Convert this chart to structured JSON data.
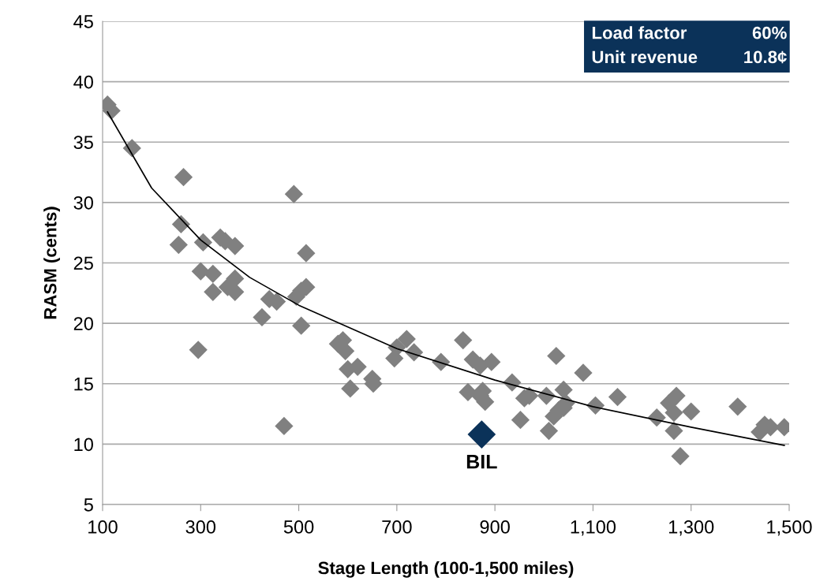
{
  "chart_data": {
    "type": "scatter",
    "xlabel": "Stage Length (100-1,500 miles)",
    "ylabel": "RASM (cents)",
    "xlim": [
      100,
      1500
    ],
    "xticks": [
      {
        "value": 100,
        "label": "100"
      },
      {
        "value": 300,
        "label": "300"
      },
      {
        "value": 500,
        "label": "500"
      },
      {
        "value": 700,
        "label": "700"
      },
      {
        "value": 900,
        "label": "900"
      },
      {
        "value": 1100,
        "label": "1,100"
      },
      {
        "value": 1300,
        "label": "1,300"
      },
      {
        "value": 1500,
        "label": "1,500"
      }
    ],
    "ylim": [
      5,
      45
    ],
    "yticks": [
      5,
      10,
      15,
      20,
      25,
      30,
      35,
      40,
      45
    ],
    "grid": "y",
    "marker": "diamond",
    "series": [
      {
        "color": "#808080",
        "x": [
          110,
          118,
          160,
          265,
          260,
          255,
          305,
          300,
          295,
          325,
          325,
          340,
          350,
          355,
          370,
          370,
          370,
          425,
          440,
          455,
          470,
          490,
          495,
          505,
          515,
          515,
          505,
          580,
          590,
          595,
          600,
          605,
          620,
          650,
          652,
          695,
          700,
          720,
          735,
          790,
          835,
          845,
          855,
          870,
          870,
          875,
          880,
          893,
          935,
          952,
          960,
          970,
          1005,
          1010,
          1020,
          1025,
          1030,
          1040,
          1040,
          1045,
          1080,
          1105,
          1150,
          1230,
          1255,
          1265,
          1265,
          1270,
          1278,
          1300,
          1395,
          1440,
          1450,
          1462,
          1490
        ],
        "values": [
          38.1,
          37.6,
          34.5,
          32.1,
          28.2,
          26.5,
          26.7,
          24.3,
          17.8,
          24.1,
          22.6,
          27.1,
          26.8,
          23.0,
          26.4,
          23.7,
          22.6,
          20.5,
          22.0,
          21.8,
          11.5,
          30.7,
          22.2,
          22.7,
          23.0,
          25.8,
          19.8,
          18.3,
          18.6,
          17.7,
          16.2,
          14.6,
          16.4,
          15.4,
          15.0,
          17.1,
          18.0,
          18.7,
          17.6,
          16.8,
          18.6,
          14.3,
          17.0,
          14.0,
          16.5,
          14.4,
          13.5,
          16.8,
          15.1,
          12.0,
          13.8,
          14.0,
          14.0,
          11.1,
          12.3,
          17.3,
          12.8,
          13.0,
          14.5,
          13.4,
          15.9,
          13.2,
          13.9,
          12.2,
          13.4,
          12.6,
          11.1,
          14.0,
          9.0,
          12.7,
          13.1,
          11.0,
          11.6,
          11.4,
          11.4
        ]
      },
      {
        "color": "#0b3259",
        "x": [
          873
        ],
        "values": [
          10.8
        ]
      },
      {
        "type": "line",
        "color": "#000000",
        "marker": "none",
        "x": [
          110,
          200,
          300,
          400,
          500,
          700,
          900,
          1100,
          1300,
          1490
        ],
        "values": [
          37.5,
          31.2,
          26.9,
          23.8,
          21.5,
          17.9,
          15.3,
          13.1,
          11.4,
          9.9
        ]
      }
    ],
    "annotations": [
      "Load factor",
      "60%",
      "Unit revenue",
      "10.8¢",
      {
        "text": "BIL",
        "x": 873,
        "y": 10.8
      }
    ]
  }
}
